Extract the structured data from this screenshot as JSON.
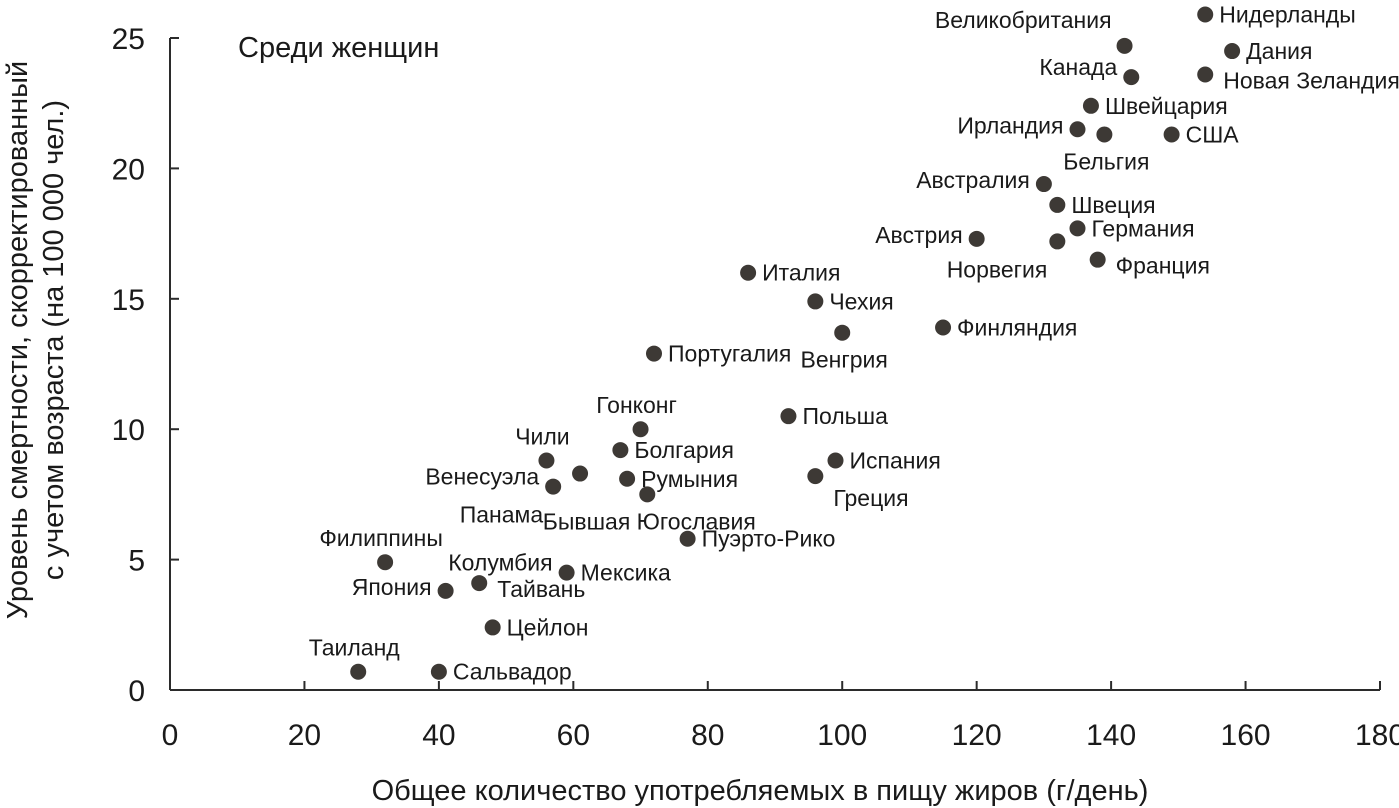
{
  "chart_data": {
    "type": "scatter",
    "title": "Среди женщин",
    "xlabel": "Общее количество употребляемых в пищу жиров (г/день)",
    "ylabel": "Уровень смертности, скорректированный с учетом возраста (на 100 000 чел.)",
    "ylabel_lines": [
      "Уровень смертности, скорректированный",
      "с учетом возраста (на 100 000 чел.)"
    ],
    "xlim": [
      0,
      180
    ],
    "ylim": [
      0,
      25
    ],
    "xticks": [
      0,
      20,
      40,
      60,
      80,
      100,
      120,
      140,
      160,
      180
    ],
    "yticks": [
      0,
      5,
      10,
      15,
      20,
      25
    ],
    "grid": false,
    "point_color": "#3d3935",
    "points": [
      {
        "label": "Нидерланды",
        "x": 154,
        "y": 25.9,
        "pos": "right"
      },
      {
        "label": "Великобритания",
        "x": 142,
        "y": 24.7,
        "pos": "above-left"
      },
      {
        "label": "Дания",
        "x": 158,
        "y": 24.5,
        "pos": "right"
      },
      {
        "label": "Канада",
        "x": 143,
        "y": 23.5,
        "pos": "left-up"
      },
      {
        "label": "Новая Зеландия",
        "x": 154,
        "y": 23.6,
        "pos": "right-down"
      },
      {
        "label": "Швейцария",
        "x": 137,
        "y": 22.4,
        "pos": "right"
      },
      {
        "label": "Ирландия",
        "x": 135,
        "y": 21.5,
        "pos": "left"
      },
      {
        "label": "",
        "x": 139,
        "y": 21.3,
        "pos": "none"
      },
      {
        "label": "Бельгия",
        "x": 139,
        "y": 21.3,
        "pos": "below",
        "label_only": true
      },
      {
        "label": "США",
        "x": 149,
        "y": 21.3,
        "pos": "right"
      },
      {
        "label": "Австралия",
        "x": 130,
        "y": 19.4,
        "pos": "left"
      },
      {
        "label": "Швеция",
        "x": 132,
        "y": 18.6,
        "pos": "right"
      },
      {
        "label": "Германия",
        "x": 135,
        "y": 17.7,
        "pos": "right"
      },
      {
        "label": "Австрия",
        "x": 120,
        "y": 17.3,
        "pos": "left"
      },
      {
        "label": "Норвегия",
        "x": 132,
        "y": 17.2,
        "pos": "below-left"
      },
      {
        "label": "Франция",
        "x": 138,
        "y": 16.5,
        "pos": "right-down"
      },
      {
        "label": "Италия",
        "x": 86,
        "y": 16.0,
        "pos": "right"
      },
      {
        "label": "Чехия",
        "x": 96,
        "y": 14.9,
        "pos": "right"
      },
      {
        "label": "Финляндия",
        "x": 115,
        "y": 13.9,
        "pos": "right"
      },
      {
        "label": "Венгрия",
        "x": 100,
        "y": 13.7,
        "pos": "below"
      },
      {
        "label": "Португалия",
        "x": 72,
        "y": 12.9,
        "pos": "right"
      },
      {
        "label": "Гонконг",
        "x": 70,
        "y": 10.0,
        "pos": "above"
      },
      {
        "label": "Польша",
        "x": 92,
        "y": 10.5,
        "pos": "right"
      },
      {
        "label": "Чили",
        "x": 56,
        "y": 8.8,
        "pos": "above"
      },
      {
        "label": "Болгария",
        "x": 67,
        "y": 9.2,
        "pos": "right"
      },
      {
        "label": "Испания",
        "x": 99,
        "y": 8.8,
        "pos": "right"
      },
      {
        "label": "Венесуэла",
        "x": 57,
        "y": 7.8,
        "pos": "left-up"
      },
      {
        "label": "",
        "x": 61,
        "y": 8.3,
        "pos": "none"
      },
      {
        "label": "Румыния",
        "x": 68,
        "y": 8.1,
        "pos": "right"
      },
      {
        "label": "Греция",
        "x": 96,
        "y": 8.2,
        "pos": "below-right"
      },
      {
        "label": "Панама",
        "x": 57,
        "y": 7.8,
        "pos": "below-left",
        "label_only": true
      },
      {
        "label": "Бывшая Югославия",
        "x": 71,
        "y": 7.5,
        "pos": "below"
      },
      {
        "label": "Пуэрто-Рико",
        "x": 77,
        "y": 5.8,
        "pos": "right"
      },
      {
        "label": "Колумбия",
        "x": 59,
        "y": 4.5,
        "pos": "left-up"
      },
      {
        "label": "Мексика",
        "x": 59,
        "y": 4.5,
        "pos": "right",
        "label_only": true
      },
      {
        "label": "Филиппины",
        "x": 32,
        "y": 4.9,
        "pos": "above"
      },
      {
        "label": "Тайвань",
        "x": 46,
        "y": 4.1,
        "pos": "right-down"
      },
      {
        "label": "Япония",
        "x": 41,
        "y": 3.8,
        "pos": "left"
      },
      {
        "label": "Цейлон",
        "x": 48,
        "y": 2.4,
        "pos": "right"
      },
      {
        "label": "Таиланд",
        "x": 28,
        "y": 0.7,
        "pos": "above"
      },
      {
        "label": "Сальвадор",
        "x": 40,
        "y": 0.7,
        "pos": "right"
      }
    ]
  }
}
